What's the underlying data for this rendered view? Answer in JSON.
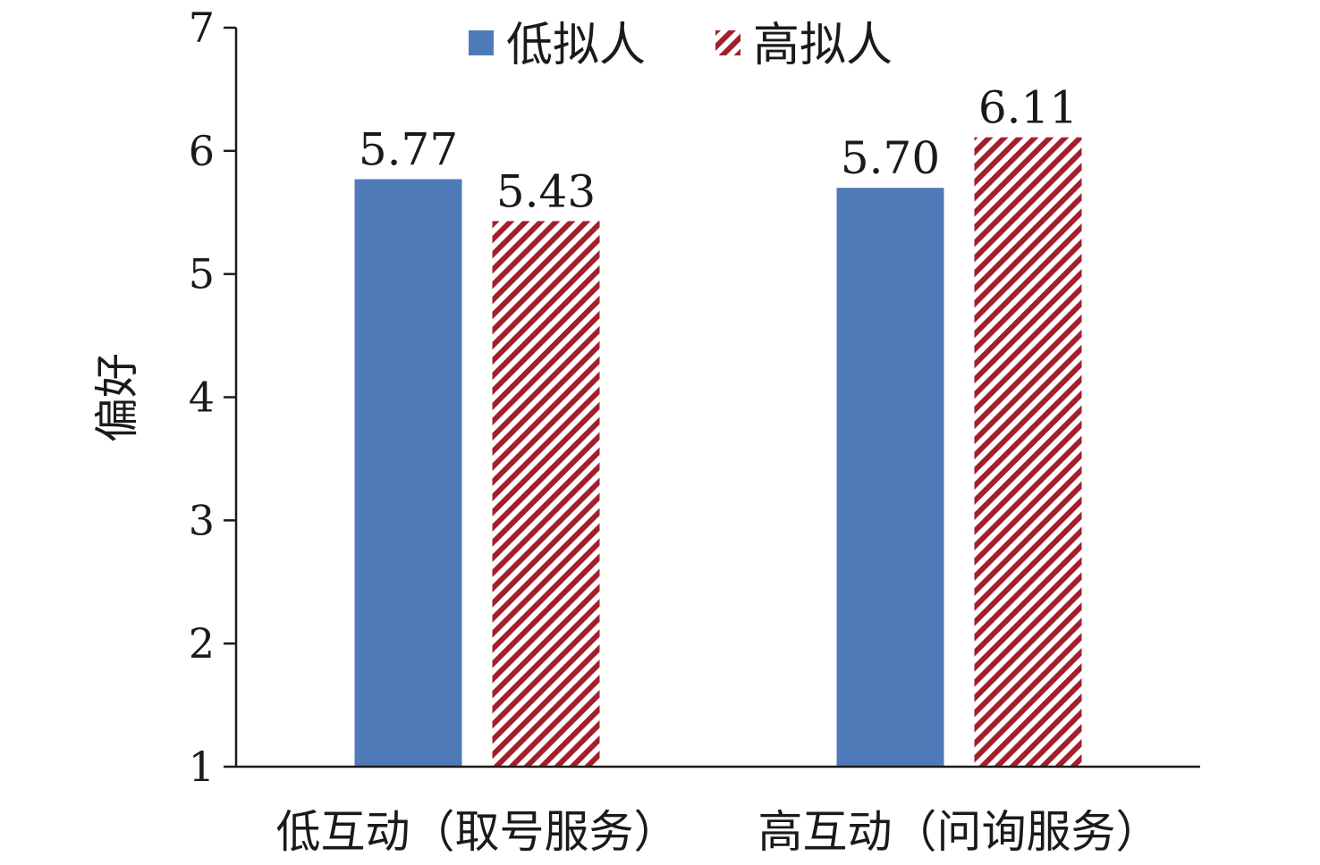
{
  "chart_data": {
    "type": "bar",
    "categories": [
      "低互动（取号服务）",
      "高互动（问询服务）"
    ],
    "series": [
      {
        "name": "低拟人",
        "values": [
          5.77,
          5.7
        ],
        "labels": [
          "5.77",
          "5.70"
        ],
        "color": "#4f7ab8",
        "pattern": "solid"
      },
      {
        "name": "高拟人",
        "values": [
          5.43,
          6.11
        ],
        "labels": [
          "5.43",
          "6.11"
        ],
        "color": "#a31f2b",
        "pattern": "diagonal-stripes"
      }
    ],
    "ylabel": "偏好",
    "xlabel": "",
    "ylim": [
      1,
      7
    ],
    "yticks": [
      "1",
      "2",
      "3",
      "4",
      "5",
      "6",
      "7"
    ],
    "grid": false,
    "legend_position": "top-center"
  }
}
